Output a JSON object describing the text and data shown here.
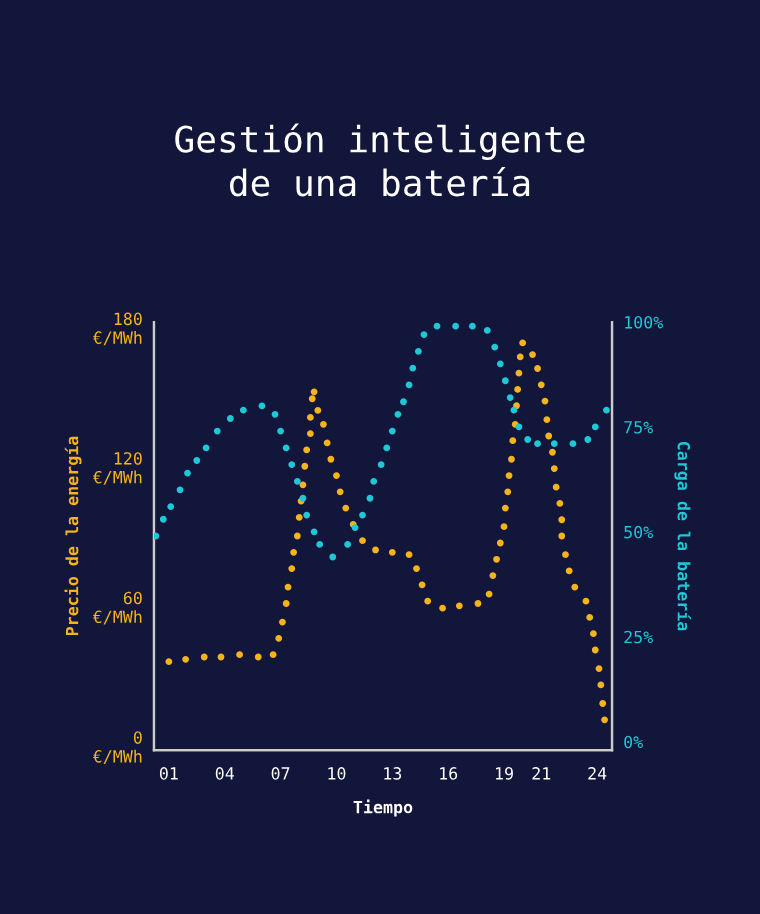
{
  "chart_data": {
    "type": "scatter",
    "title": "Gestión inteligente\nde una batería",
    "xlabel": "Tiempo",
    "ylabel": "Precio de la energía",
    "y2label": "Carga de la batería",
    "xlim": [
      0.2,
      24.8
    ],
    "xticks": [
      {
        "value": 1,
        "label": "01"
      },
      {
        "value": 4,
        "label": "04"
      },
      {
        "value": 7,
        "label": "07"
      },
      10,
      13,
      16,
      19,
      21,
      24
    ],
    "ylim": [
      -2,
      182
    ],
    "yticks": [
      {
        "value": 0,
        "label": "0\n€/MWh"
      },
      {
        "value": 60,
        "label": "60\n€/MWh"
      },
      {
        "value": 120,
        "label": "120\n€/MWh"
      },
      {
        "value": 180,
        "label": "180\n€/MWh"
      }
    ],
    "y2lim": [
      -2,
      100
    ],
    "y2ticks": [
      {
        "value": 0,
        "label": "0%"
      },
      {
        "value": 25,
        "label": "25%"
      },
      {
        "value": 50,
        "label": "50%"
      },
      {
        "value": 75,
        "label": "75%"
      },
      {
        "value": 100,
        "label": "100%"
      }
    ],
    "marker": "circle",
    "grid": false,
    "legend": false,
    "series": [
      {
        "color": "#f5b41c",
        "x": [
          1.0,
          1.9,
          2.9,
          3.8,
          4.8,
          5.8,
          6.6,
          6.9,
          7.1,
          7.3,
          7.4,
          7.6,
          7.7,
          7.9,
          8.0,
          8.1,
          8.2,
          8.3,
          8.4,
          8.6,
          8.6,
          8.7,
          8.8,
          9.0,
          9.3,
          9.5,
          9.7,
          10.0,
          10.2,
          10.5,
          10.9,
          11.4,
          12.1,
          13.0,
          13.9,
          14.3,
          14.6,
          14.9,
          15.7,
          16.6,
          17.6,
          18.2,
          18.4,
          18.6,
          18.8,
          19.0,
          19.07,
          19.2,
          19.27,
          19.4,
          19.47,
          19.6,
          19.67,
          19.73,
          19.8,
          19.87,
          20.0,
          20.53,
          20.8,
          21.0,
          21.2,
          21.3,
          21.4,
          21.6,
          21.7,
          21.8,
          22.0,
          22.1,
          22.1,
          22.3,
          22.5,
          22.8,
          23.4,
          23.6,
          23.8,
          23.9,
          24.1,
          24.2,
          24.3,
          24.4
        ],
        "values": [
          36,
          37,
          38,
          38,
          39,
          38,
          39,
          46,
          53,
          61,
          68,
          76,
          83,
          90,
          98,
          105,
          112,
          120,
          127,
          134,
          141,
          149,
          152,
          144,
          138,
          130,
          123,
          116,
          109,
          102,
          95,
          88,
          84,
          83,
          82,
          76,
          69,
          62,
          59,
          60,
          61,
          65,
          73,
          80,
          87,
          94,
          102,
          109,
          116,
          123,
          131,
          138,
          146,
          153,
          160,
          167,
          173,
          168,
          162,
          155,
          148,
          140,
          133,
          126,
          119,
          111,
          104,
          97,
          90,
          82,
          75,
          68,
          62,
          55,
          48,
          41,
          33,
          26,
          18,
          11
        ]
      },
      {
        "color": "#1ec8d6",
        "axis": "y2",
        "x": [
          0.3,
          0.7,
          1.1,
          1.6,
          2.0,
          2.5,
          3.0,
          3.6,
          4.3,
          5.0,
          6.0,
          6.7,
          7.0,
          7.3,
          7.6,
          7.9,
          8.2,
          8.4,
          8.8,
          9.1,
          9.8,
          10.6,
          11.0,
          11.4,
          11.8,
          12.0,
          12.4,
          12.7,
          13.0,
          13.3,
          13.6,
          13.9,
          14.1,
          14.4,
          14.7,
          15.4,
          16.4,
          17.3,
          18.1,
          18.5,
          18.8,
          19.07,
          19.33,
          19.53,
          19.8,
          20.27,
          20.8,
          21.7,
          22.7,
          23.5,
          23.9,
          24.5
        ],
        "values": [
          49,
          53,
          56,
          60,
          64,
          67,
          70,
          74,
          77,
          79,
          80,
          78,
          74,
          70,
          66,
          62,
          58,
          54,
          50,
          47,
          44,
          47,
          51,
          54,
          58,
          62,
          66,
          70,
          74,
          78,
          81,
          85,
          89,
          93,
          97,
          99,
          99,
          99,
          98,
          94,
          90,
          86,
          82,
          79,
          75,
          72,
          71,
          71,
          71,
          72,
          75,
          79
        ]
      }
    ]
  }
}
